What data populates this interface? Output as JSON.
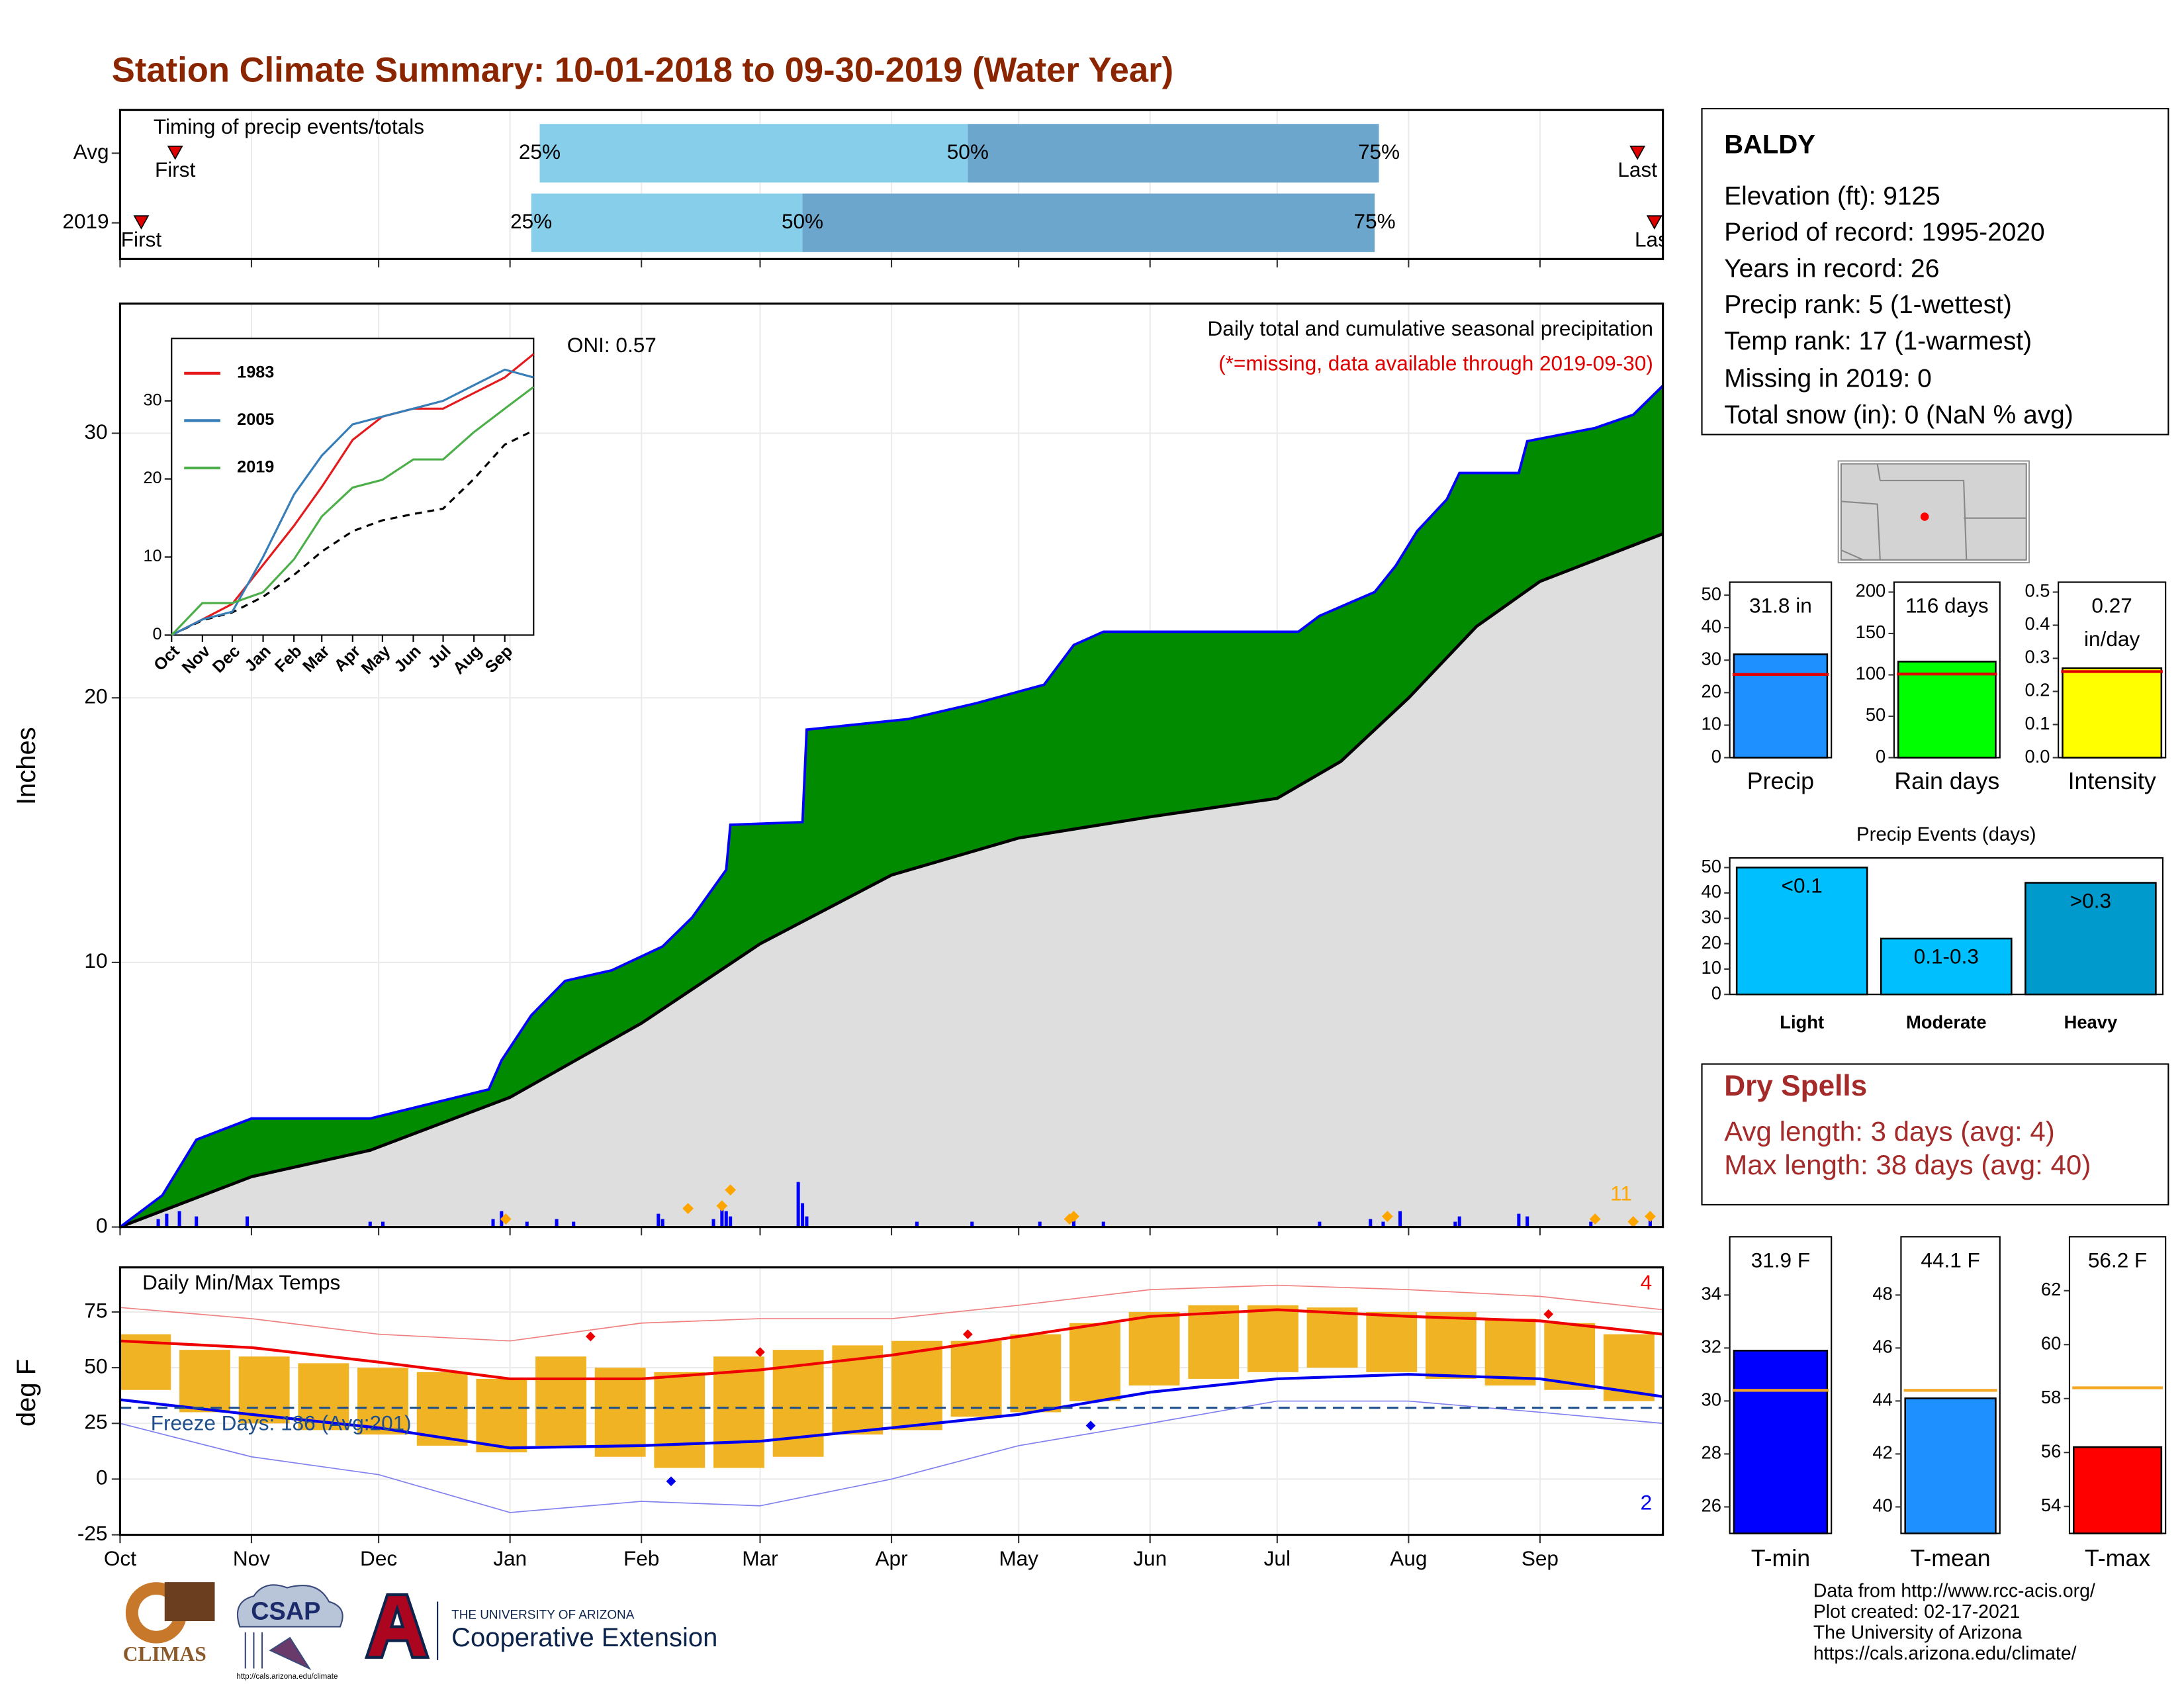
{
  "title": "Station Climate Summary: 10-01-2018 to 09-30-2019 (Water Year)",
  "chart_data": [
    {
      "type": "timing",
      "title": "Timing of precip events/totals",
      "xlim": [
        0,
        364
      ],
      "rows": [
        {
          "label": "Avg",
          "first": 13,
          "q25": 99,
          "q50": 200,
          "q75": 297,
          "last": 358
        },
        {
          "label": "2019",
          "first": 5,
          "q25": 97,
          "q50": 161,
          "q75": 296,
          "last": 362
        }
      ],
      "marker_labels": {
        "first": "First",
        "q25": "25%",
        "q50": "50%",
        "q75": "75%",
        "last": "Last"
      },
      "colors": {
        "early": "#87ceeb",
        "late": "#6ca6cd",
        "marker": "#e00000"
      }
    },
    {
      "type": "area",
      "subtitle": "Daily total and cumulative seasonal precipitation",
      "note": "(*=missing, data available through 2019-09-30)",
      "oni": "ONI: 0.57",
      "annotation": "11",
      "ylabel": "Inches",
      "xlim": [
        0,
        364
      ],
      "ylim": [
        0,
        34.9
      ],
      "yticks": [
        0,
        10,
        20,
        30
      ],
      "grid": true,
      "observed": {
        "x": [
          0,
          10,
          18,
          31,
          59,
          87,
          90,
          97,
          105,
          116,
          128,
          135,
          143,
          144,
          161,
          162,
          186,
          202,
          218,
          225,
          232,
          278,
          283,
          296,
          301,
          306,
          313,
          316,
          330,
          332,
          348,
          357,
          364
        ],
        "values": [
          0,
          1.2,
          3.3,
          4.1,
          4.1,
          5.2,
          6.3,
          8.0,
          9.3,
          9.7,
          10.6,
          11.7,
          13.5,
          15.2,
          15.3,
          18.8,
          19.2,
          19.8,
          20.5,
          22.0,
          22.5,
          22.5,
          23.1,
          24.0,
          25.0,
          26.3,
          27.5,
          28.5,
          28.5,
          29.7,
          30.2,
          30.7,
          31.8
        ],
        "color": "#0000ff",
        "fill": "#008b00"
      },
      "average": {
        "x": [
          0,
          31,
          59,
          92,
          123,
          151,
          182,
          212,
          243,
          273,
          288,
          304,
          320,
          335,
          364
        ],
        "values": [
          0,
          1.9,
          2.9,
          4.9,
          7.7,
          10.7,
          13.3,
          14.7,
          15.5,
          16.2,
          17.6,
          20.0,
          22.7,
          24.4,
          26.2
        ],
        "color": "#000000",
        "fill": "#dedede"
      },
      "daily": {
        "x": [
          9,
          11,
          14,
          18,
          30,
          59,
          62,
          88,
          90,
          96,
          103,
          107,
          127,
          128,
          140,
          142,
          143,
          144,
          160,
          161,
          162,
          188,
          201,
          217,
          225,
          232,
          283,
          295,
          298,
          302,
          315,
          316,
          330,
          332,
          347,
          357,
          361
        ],
        "values": [
          0.3,
          0.5,
          0.6,
          0.4,
          0.4,
          0.2,
          0.2,
          0.3,
          0.6,
          0.2,
          0.3,
          0.2,
          0.5,
          0.3,
          0.3,
          0.8,
          0.6,
          0.4,
          1.7,
          0.9,
          0.4,
          0.2,
          0.2,
          0.2,
          0.3,
          0.2,
          0.2,
          0.3,
          0.2,
          0.6,
          0.2,
          0.4,
          0.5,
          0.4,
          0.2,
          0.3,
          0.3
        ],
        "color": "#0000ff"
      },
      "flagged": {
        "x": [
          91,
          134,
          142,
          144,
          224,
          225,
          299,
          348,
          357,
          361
        ],
        "values": [
          0.3,
          0.7,
          0.8,
          1.4,
          0.3,
          0.4,
          0.4,
          0.3,
          0.2,
          0.4
        ],
        "color": "#ffa500"
      }
    },
    {
      "type": "line",
      "xlim": [
        0,
        364
      ],
      "ylim": [
        0,
        38
      ],
      "yticks": [
        0,
        10,
        20,
        30
      ],
      "x": [
        0,
        31,
        61,
        92,
        123,
        151,
        182,
        212,
        243,
        273,
        304,
        335,
        364
      ],
      "xticks": [
        {
          "value": 0,
          "label": "Oct"
        },
        {
          "value": 31,
          "label": "Nov"
        },
        {
          "value": 61,
          "label": "Dec"
        },
        {
          "value": 92,
          "label": "Jan"
        },
        {
          "value": 123,
          "label": "Feb"
        },
        {
          "value": 151,
          "label": "Mar"
        },
        {
          "value": 182,
          "label": "Apr"
        },
        {
          "value": 212,
          "label": "May"
        },
        {
          "value": 243,
          "label": "Jun"
        },
        {
          "value": 273,
          "label": "Jul"
        },
        {
          "value": 304,
          "label": "Aug"
        },
        {
          "value": 335,
          "label": "Sep"
        }
      ],
      "series": [
        {
          "name": "1983",
          "color": "#e41a1c",
          "values": [
            0,
            2,
            4,
            9,
            14,
            19,
            25,
            28,
            29,
            29,
            31,
            33,
            36
          ]
        },
        {
          "name": "2005",
          "color": "#377eb8",
          "values": [
            0,
            2,
            3,
            10,
            18,
            23,
            27,
            28,
            29,
            30,
            32,
            34,
            33
          ]
        },
        {
          "name": "2019",
          "color": "#4daf4a",
          "values": [
            0,
            4.1,
            4.1,
            5.5,
            9.7,
            15.2,
            18.9,
            19.9,
            22.5,
            22.5,
            26,
            29,
            31.8
          ]
        }
      ],
      "average": {
        "color": "#000000",
        "values": [
          0,
          1.9,
          2.9,
          4.9,
          7.7,
          10.7,
          13.3,
          14.7,
          15.5,
          16.2,
          20,
          24.4,
          26.2
        ]
      }
    },
    {
      "type": "temperature",
      "title": "Daily Min/Max Temps",
      "ylabel": "deg F",
      "xlim": [
        0,
        364
      ],
      "ylim": [
        -25,
        95
      ],
      "yticks": [
        -25,
        0,
        25,
        50,
        75
      ],
      "grid": true,
      "xticks": [
        {
          "value": 0,
          "label": "Oct"
        },
        {
          "value": 31,
          "label": "Nov"
        },
        {
          "value": 61,
          "label": "Dec"
        },
        {
          "value": 92,
          "label": "Jan"
        },
        {
          "value": 123,
          "label": "Feb"
        },
        {
          "value": 151,
          "label": "Mar"
        },
        {
          "value": 182,
          "label": "Apr"
        },
        {
          "value": 212,
          "label": "May"
        },
        {
          "value": 243,
          "label": "Jun"
        },
        {
          "value": 273,
          "label": "Jul"
        },
        {
          "value": 304,
          "label": "Aug"
        },
        {
          "value": 335,
          "label": "Sep"
        }
      ],
      "x": [
        0,
        31,
        61,
        92,
        123,
        151,
        182,
        212,
        243,
        273,
        304,
        335,
        364
      ],
      "avg_max": {
        "color": "#ee0000",
        "values": [
          62,
          59,
          52.5,
          45,
          45,
          49,
          55.6,
          64,
          73,
          76,
          73,
          71,
          65
        ]
      },
      "avg_min": {
        "color": "#0000ee",
        "values": [
          35.6,
          29,
          23,
          14,
          15,
          17,
          23,
          29,
          39,
          45,
          47,
          45,
          37
        ]
      },
      "rec_max": {
        "color": "#f08080",
        "values": [
          77,
          72,
          65,
          62,
          70,
          72,
          72,
          78,
          85,
          87,
          85,
          82,
          76
        ]
      },
      "rec_min": {
        "color": "#8080f0",
        "values": [
          25,
          10,
          2,
          -15,
          -10,
          -12,
          0,
          15,
          25,
          35,
          35,
          30,
          25
        ]
      },
      "daily": {
        "color": "#f0b323",
        "width": 12,
        "x": [
          0,
          14,
          28,
          42,
          56,
          70,
          84,
          98,
          112,
          126,
          140,
          154,
          168,
          182,
          196,
          210,
          224,
          238,
          252,
          266,
          280,
          294,
          308,
          322,
          336,
          350
        ],
        "low": [
          40,
          30,
          25,
          22,
          20,
          15,
          12,
          15,
          10,
          5,
          5,
          10,
          20,
          22,
          28,
          30,
          35,
          42,
          45,
          48,
          50,
          48,
          45,
          42,
          40,
          35
        ],
        "high": [
          65,
          58,
          55,
          52,
          50,
          48,
          45,
          55,
          50,
          48,
          55,
          58,
          60,
          62,
          62,
          65,
          70,
          75,
          78,
          78,
          77,
          75,
          75,
          72,
          70,
          65
        ]
      },
      "record_highs": {
        "color": "#ee0000",
        "x": [
          111,
          151,
          200,
          337
        ],
        "values": [
          64,
          57,
          65,
          74
        ]
      },
      "record_lows": {
        "color": "#0000ee",
        "x": [
          130,
          229
        ],
        "values": [
          -1,
          24
        ]
      },
      "record_high_count": 4,
      "record_low_count": 2,
      "freeze": 32,
      "freeze_label": "Freeze Days: 186 (Avg:201)",
      "freeze_color": "#1f4e8c"
    },
    {
      "type": "bar",
      "categories": [
        "Precip"
      ],
      "values": [
        31.8
      ],
      "value_labels": [
        "31.8 in"
      ],
      "average": [
        25.6
      ],
      "color": "#1e90ff",
      "average_color": "#e00000",
      "ylim": [
        0,
        54
      ],
      "yticks": [
        0,
        10,
        20,
        30,
        40,
        50
      ]
    },
    {
      "type": "bar",
      "categories": [
        "Rain days"
      ],
      "values": [
        116
      ],
      "value_labels": [
        "116 days"
      ],
      "average": [
        101
      ],
      "color": "#00ff00",
      "average_color": "#e00000",
      "ylim": [
        0,
        212
      ],
      "yticks": [
        0,
        50,
        100,
        150,
        200
      ]
    },
    {
      "type": "bar",
      "categories": [
        "Intensity"
      ],
      "values": [
        0.27
      ],
      "value_labels": [
        "0.27"
      ],
      "unit_label": "in/day",
      "average": [
        0.26
      ],
      "color": "#ffff00",
      "average_color": "#e00000",
      "ylim": [
        0,
        0.53
      ],
      "yticks": [
        {
          "value": 0,
          "label": "0.0"
        },
        0.1,
        0.2,
        0.3,
        0.4,
        0.5
      ]
    },
    {
      "type": "bar",
      "title": "Precip Events (days)",
      "categories": [
        "Light",
        "Moderate",
        "Heavy"
      ],
      "values": [
        50,
        22,
        44
      ],
      "labels": [
        "<0.1",
        "0.1-0.3",
        ">0.3"
      ],
      "colors": [
        "#00bfff",
        "#00bfff",
        "#009acd"
      ],
      "ylim": [
        0,
        53.8
      ],
      "yticks": [
        0,
        10,
        20,
        30,
        40,
        50
      ]
    },
    {
      "type": "bar",
      "categories": [
        "T-min"
      ],
      "values": [
        31.9
      ],
      "value_labels": [
        "31.9 F"
      ],
      "average": [
        30.4
      ],
      "color": "#0000ff",
      "average_color": "#f5a623",
      "ylim": [
        25,
        36.2
      ],
      "yticks": [
        26,
        28,
        30,
        32,
        34
      ]
    },
    {
      "type": "bar",
      "categories": [
        "T-mean"
      ],
      "values": [
        44.1
      ],
      "value_labels": [
        "44.1 F"
      ],
      "average": [
        44.4
      ],
      "color": "#1e90ff",
      "average_color": "#f5a623",
      "ylim": [
        39,
        50.2
      ],
      "yticks": [
        40,
        42,
        44,
        46,
        48
      ]
    },
    {
      "type": "bar",
      "categories": [
        "T-max"
      ],
      "values": [
        56.2
      ],
      "value_labels": [
        "56.2 F"
      ],
      "average": [
        58.4
      ],
      "color": "#ff0000",
      "average_color": "#f5a623",
      "ylim": [
        53,
        64
      ],
      "yticks": [
        54,
        56,
        58,
        60,
        62
      ]
    }
  ],
  "station": {
    "name": "BALDY",
    "lines": [
      "Elevation (ft): 9125",
      "Period of record: 1995-2020",
      "Years in record: 26",
      "Precip rank: 5 (1-wettest)",
      "Temp rank: 17 (1-warmest)",
      "Missing in 2019: 0",
      "Total snow (in): 0 (NaN % avg)"
    ]
  },
  "dry_spells": {
    "title": "Dry Spells",
    "lines": [
      "Avg length: 3 days (avg: 4)",
      "Max length: 38 days (avg: 40)"
    ]
  },
  "footer": {
    "climas": "CLIMAS",
    "csap": "CSAP",
    "csap_url": "http://cals.arizona.edu/climate",
    "ua": "THE UNIVERSITY OF ARIZONA",
    "extension": "Cooperative Extension",
    "credits": [
      "Data from http://www.rcc-acis.org/",
      "Plot created: 02-17-2021",
      "The University of Arizona",
      "https://cals.arizona.edu/climate/"
    ]
  }
}
